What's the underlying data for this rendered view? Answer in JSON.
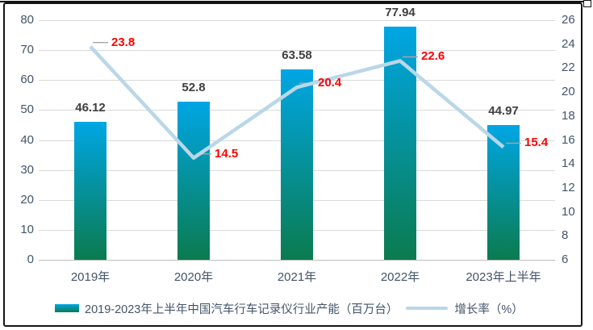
{
  "chart_data": {
    "type": "combo",
    "categories": [
      "2019年",
      "2020年",
      "2021年",
      "2022年",
      "2023年上半年"
    ],
    "series": [
      {
        "name": "2019-2023年上半年中国汽车行车记录仪行业产能（百万台）",
        "type": "bar",
        "axis": "left",
        "values": [
          46.12,
          52.8,
          63.58,
          77.94,
          44.97
        ],
        "labels": [
          "46.12",
          "52.8",
          "63.58",
          "77.94",
          "44.97"
        ],
        "color_top": "#00A6E4",
        "color_bottom": "#0B7B4F",
        "label_color": "#404040"
      },
      {
        "name": "增长率（%）",
        "type": "line",
        "axis": "right",
        "values": [
          23.8,
          14.5,
          20.4,
          22.6,
          15.4
        ],
        "labels": [
          "23.8",
          "14.5",
          "20.4",
          "22.6",
          "15.4"
        ],
        "color": "#B9D7E8",
        "label_color": "#FF0000",
        "leader_color": "#A6A6A6"
      }
    ],
    "left_axis": {
      "min": 0,
      "max": 80,
      "step": 10,
      "ticks": [
        "80",
        "70",
        "60",
        "50",
        "40",
        "30",
        "20",
        "10",
        "0"
      ]
    },
    "right_axis": {
      "min": 6,
      "max": 26,
      "step": 2,
      "ticks": [
        "26",
        "24",
        "22",
        "20",
        "18",
        "16",
        "14",
        "12",
        "10",
        "8",
        "6"
      ]
    },
    "grid": true,
    "gridline_color": "#D9D9D9",
    "axis_line_color": "#BFBFBF",
    "tick_color": "#44546A",
    "legend_position": "bottom",
    "title": ""
  }
}
